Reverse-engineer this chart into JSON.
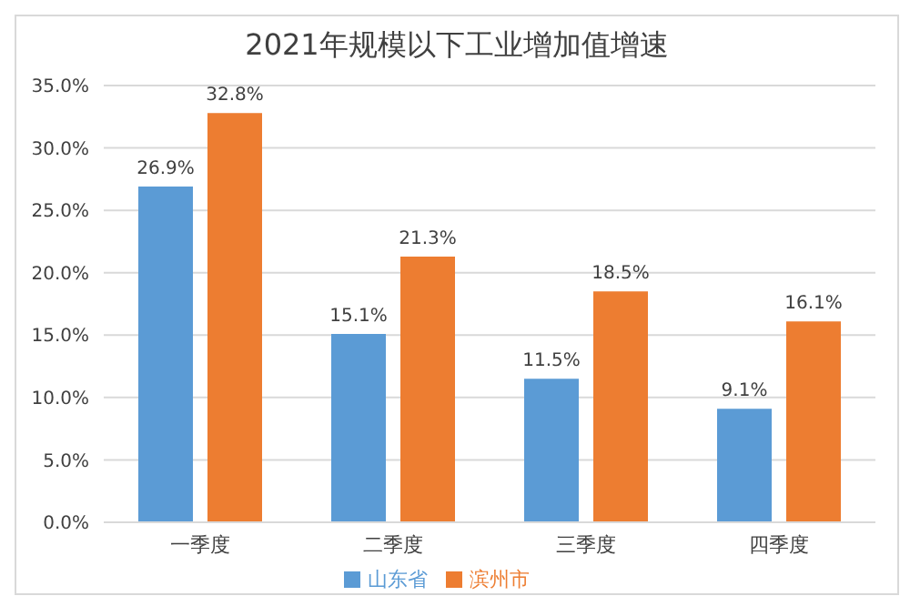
{
  "chart_data": {
    "type": "bar",
    "title": "2021年规模以下工业增加值增速",
    "categories": [
      "一季度",
      "二季度",
      "三季度",
      "四季度"
    ],
    "series": [
      {
        "name": "山东省",
        "color": "#5b9bd5",
        "values": [
          26.9,
          15.1,
          11.5,
          9.1
        ],
        "value_labels": [
          "26.9%",
          "15.1%",
          "11.5%",
          "9.1%"
        ]
      },
      {
        "name": "滨州市",
        "color": "#ed7d31",
        "values": [
          32.8,
          21.3,
          18.5,
          16.1
        ],
        "value_labels": [
          "32.8%",
          "21.3%",
          "18.5%",
          "16.1%"
        ]
      }
    ],
    "ylim": [
      0,
      35
    ],
    "yticks": [
      {
        "value": 0,
        "label": "0.0%"
      },
      {
        "value": 5,
        "label": "5.0%"
      },
      {
        "value": 10,
        "label": "10.0%"
      },
      {
        "value": 15,
        "label": "15.0%"
      },
      {
        "value": 20,
        "label": "20.0%"
      },
      {
        "value": 25,
        "label": "25.0%"
      },
      {
        "value": 30,
        "label": "30.0%"
      },
      {
        "value": 35,
        "label": "35.0%"
      }
    ],
    "grid": "y",
    "legend": "bottom"
  }
}
